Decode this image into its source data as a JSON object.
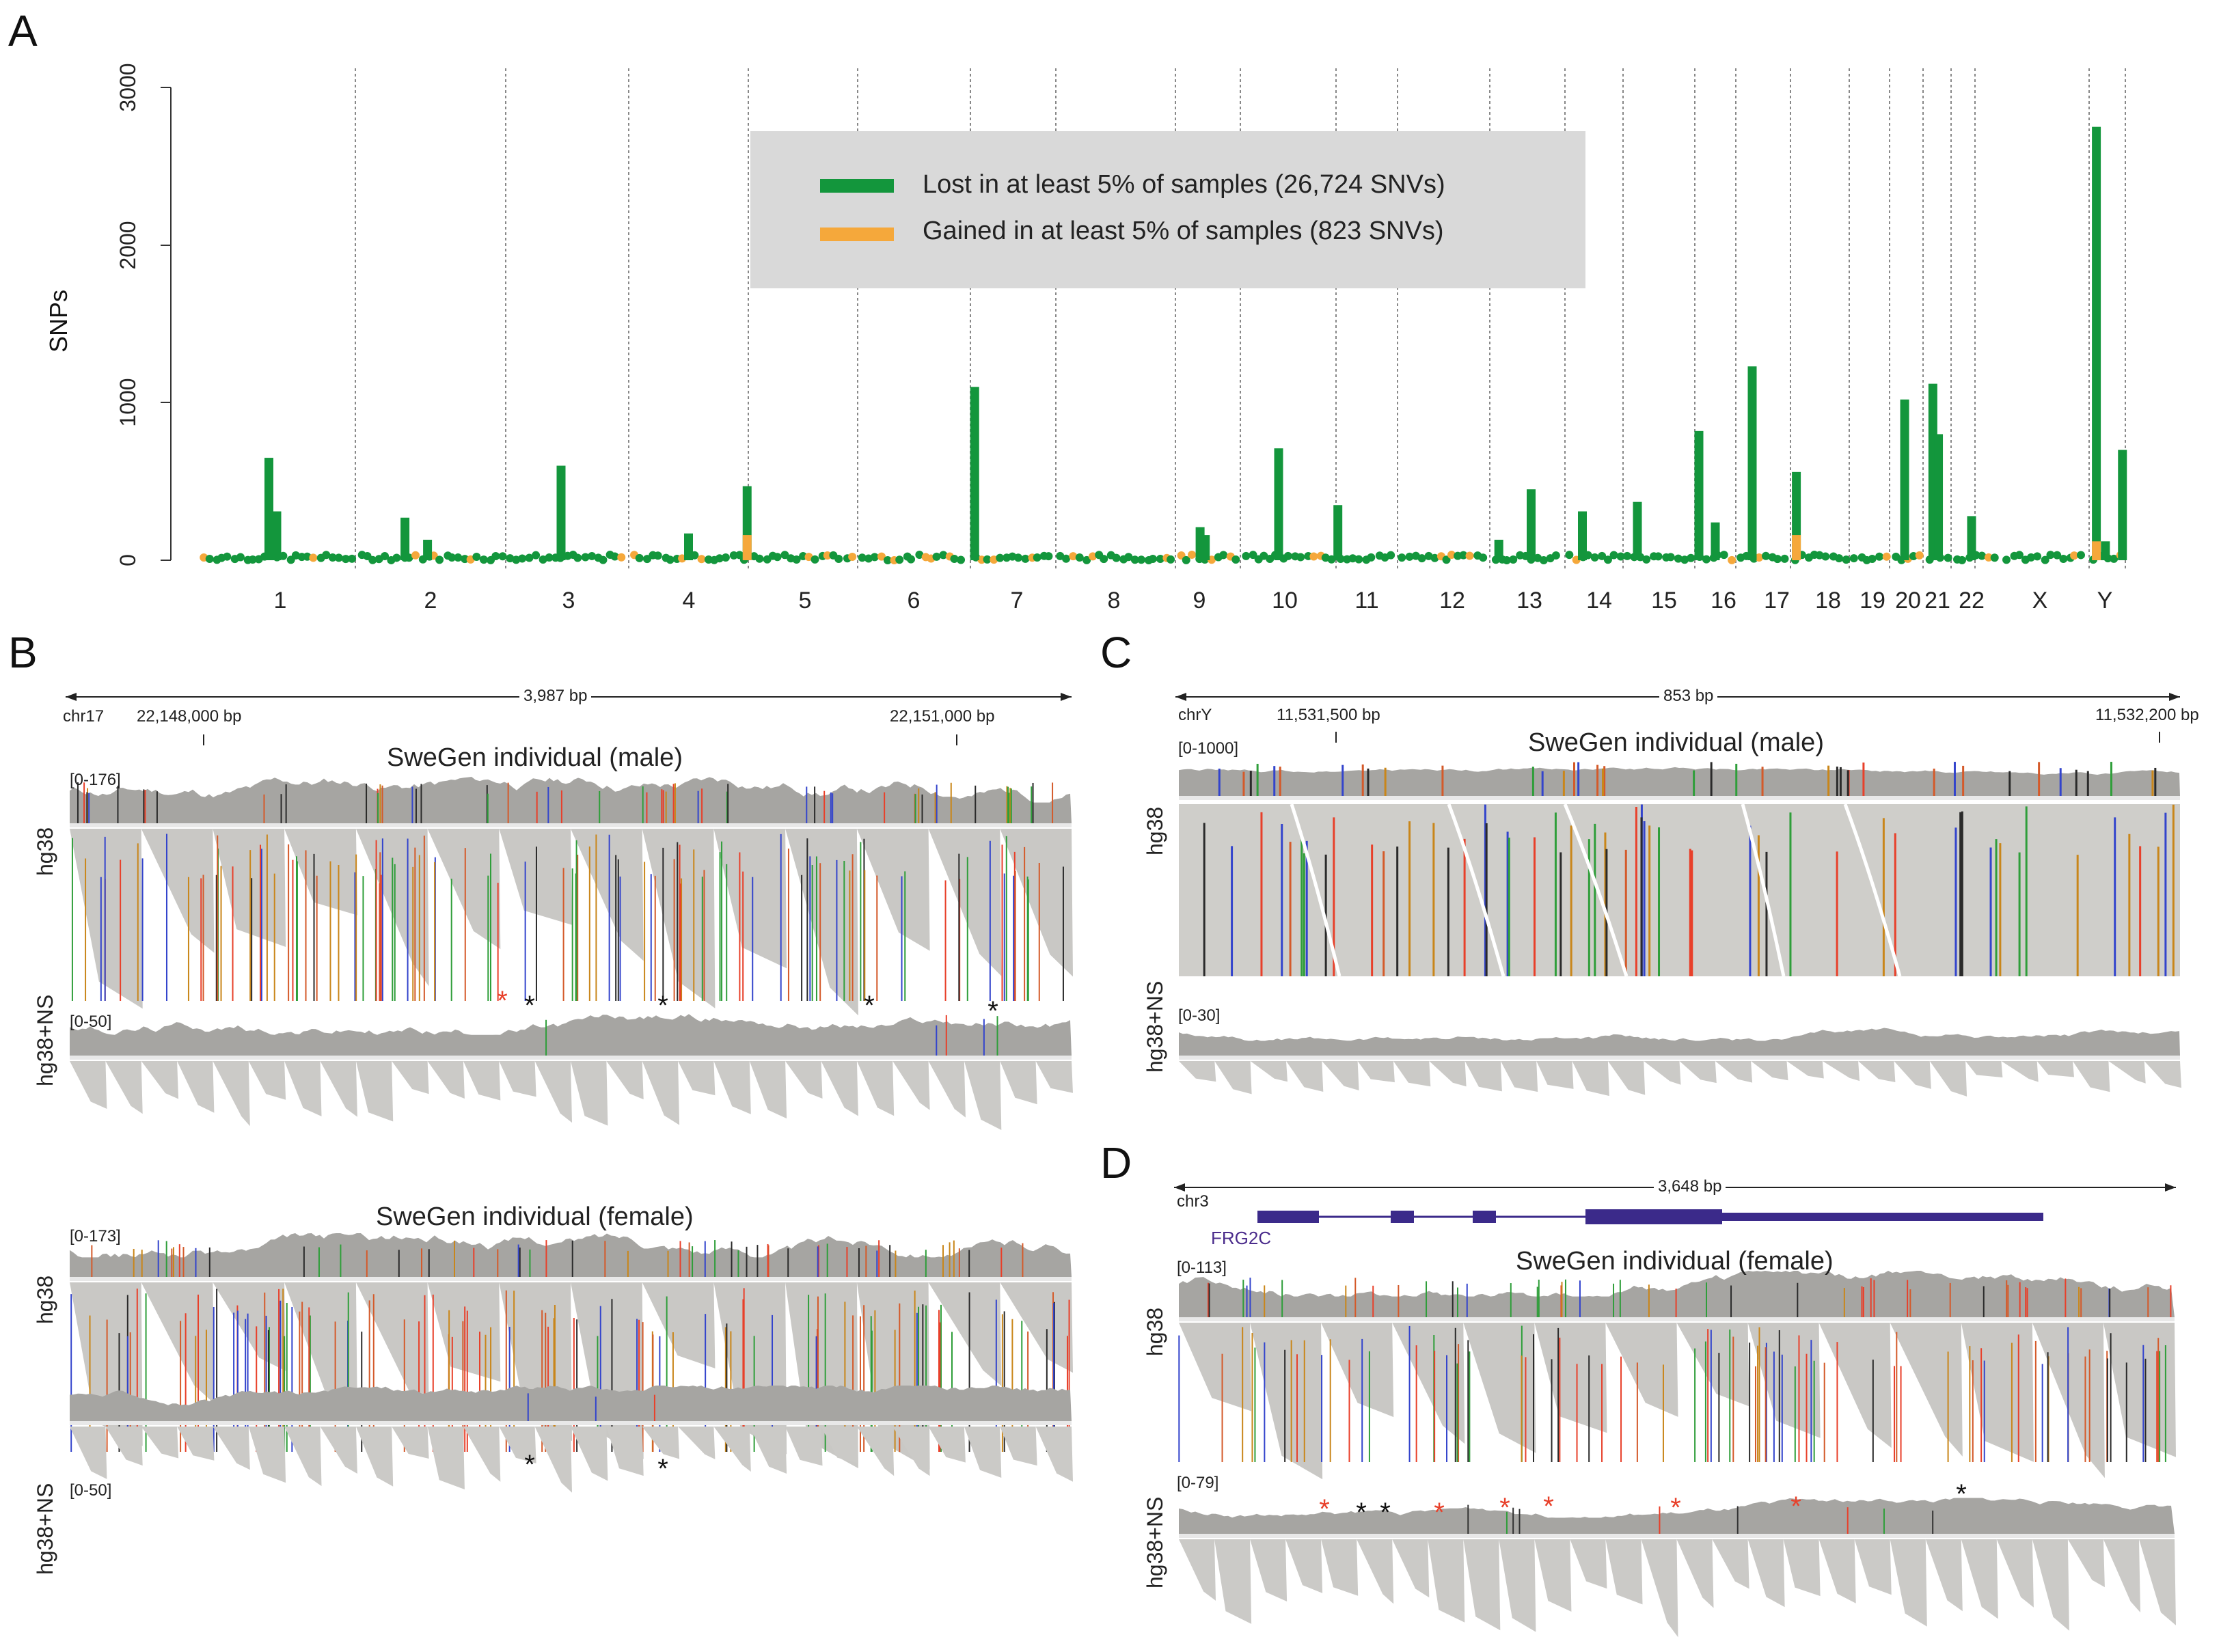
{
  "panel_labels": {
    "a": "A",
    "b": "B",
    "c": "C",
    "d": "D"
  },
  "colors": {
    "lost": "#13963c",
    "gained": "#f5a83b",
    "legend_bg": "#d9d9d9",
    "coverage": "#a6a5a2",
    "reads": "#c9c8c5"
  },
  "chart_data": {
    "type": "bar",
    "title": "",
    "xlabel": "",
    "ylabel": "SNPs",
    "ylim": [
      0,
      3000
    ],
    "yticks": [
      "0",
      "1000",
      "2000",
      "3000"
    ],
    "categories": [
      "1",
      "2",
      "3",
      "4",
      "5",
      "6",
      "7",
      "8",
      "9",
      "10",
      "11",
      "12",
      "13",
      "14",
      "15",
      "16",
      "17",
      "18",
      "19",
      "20",
      "21",
      "22",
      "X",
      "Y"
    ],
    "legend": {
      "position": "top-center",
      "entries": [
        "Lost in at least 5% of samples (26,724 SNVs)",
        "Gained in at least 5% of samples (823 SNVs)"
      ]
    },
    "series": [
      {
        "name": "Lost in at least 5% of samples (26,724 SNVs)",
        "peaks": [
          {
            "chr": "1",
            "offset": 0.45,
            "value": 650
          },
          {
            "chr": "1",
            "offset": 0.5,
            "value": 310
          },
          {
            "chr": "2",
            "offset": 0.33,
            "value": 270
          },
          {
            "chr": "2",
            "offset": 0.48,
            "value": 130
          },
          {
            "chr": "3",
            "offset": 0.45,
            "value": 600
          },
          {
            "chr": "4",
            "offset": 0.5,
            "value": 170
          },
          {
            "chr": "4",
            "offset": 0.99,
            "value": 470
          },
          {
            "chr": "7",
            "offset": 0.05,
            "value": 1100
          },
          {
            "chr": "9",
            "offset": 0.38,
            "value": 210
          },
          {
            "chr": "9",
            "offset": 0.46,
            "value": 160
          },
          {
            "chr": "10",
            "offset": 0.4,
            "value": 710
          },
          {
            "chr": "11",
            "offset": 0.03,
            "value": 350
          },
          {
            "chr": "13",
            "offset": 0.12,
            "value": 130
          },
          {
            "chr": "13",
            "offset": 0.55,
            "value": 450
          },
          {
            "chr": "14",
            "offset": 0.3,
            "value": 310
          },
          {
            "chr": "15",
            "offset": 0.2,
            "value": 370
          },
          {
            "chr": "16",
            "offset": 0.1,
            "value": 820
          },
          {
            "chr": "16",
            "offset": 0.5,
            "value": 240
          },
          {
            "chr": "17",
            "offset": 0.3,
            "value": 1230
          },
          {
            "chr": "18",
            "offset": 0.1,
            "value": 560
          },
          {
            "chr": "20",
            "offset": 0.45,
            "value": 1020
          },
          {
            "chr": "21",
            "offset": 0.35,
            "value": 1120
          },
          {
            "chr": "21",
            "offset": 0.55,
            "value": 800
          },
          {
            "chr": "22",
            "offset": 0.4,
            "value": 280
          },
          {
            "chr": "Y",
            "offset": 0.2,
            "value": 2750
          },
          {
            "chr": "Y",
            "offset": 0.45,
            "value": 120
          },
          {
            "chr": "Y",
            "offset": 0.92,
            "value": 700
          }
        ]
      },
      {
        "name": "Gained in at least 5% of samples (823 SNVs)",
        "peaks": [
          {
            "chr": "4",
            "offset": 0.99,
            "value": 160
          },
          {
            "chr": "18",
            "offset": 0.1,
            "value": 160
          },
          {
            "chr": "Y",
            "offset": 0.2,
            "value": 120
          }
        ]
      }
    ]
  },
  "panel_b": {
    "ruler_width": "3,987 bp",
    "chrom": "chr17",
    "pos_left": "22,148,000 bp",
    "pos_right": "22,151,000 bp",
    "male_title": "SweGen individual (male)",
    "female_title": "SweGen individual (female)",
    "label_hg38": "hg38",
    "label_hg38ns": "hg38+NS",
    "male_range1": "[0-176]",
    "male_range2": "[0-50]",
    "female_range1": "[0-173]",
    "female_range2": "[0-50]",
    "star": "*"
  },
  "panel_c": {
    "ruler_width": "853 bp",
    "chrom": "chrY",
    "pos_left": "11,531,500 bp",
    "pos_right": "11,532,200 bp",
    "title": "SweGen individual (male)",
    "label_hg38": "hg38",
    "label_hg38ns": "hg38+NS",
    "range1": "[0-1000]",
    "range2": "[0-30]"
  },
  "panel_d": {
    "ruler_width": "3,648 bp",
    "chrom": "chr3",
    "gene": "FRG2C",
    "title": "SweGen individual (female)",
    "label_hg38": "hg38",
    "label_hg38ns": "hg38+NS",
    "range1": "[0-113]",
    "range2": "[0-79]",
    "star": "*"
  }
}
